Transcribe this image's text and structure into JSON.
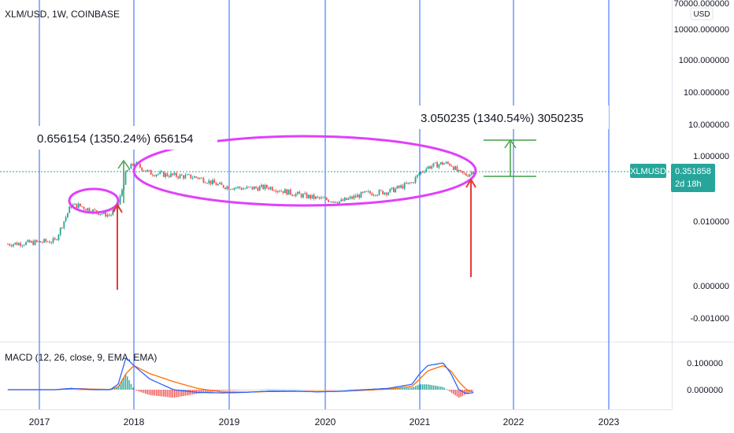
{
  "header": {
    "symbol_title": "XLM/USD, 1W, COINBASE"
  },
  "price_axis": {
    "currency_button": "USD",
    "tick_labels": [
      "70000.000000",
      "10000.000000",
      "1000.000000",
      "100.000000",
      "10.000000",
      "1.000000",
      "0.010000",
      "0.000000",
      "-0.001000"
    ],
    "scale": "log"
  },
  "last_price": {
    "symbol": "XLMUSD",
    "value": "0.351858",
    "countdown": "2d 18h",
    "color": "#26a69a"
  },
  "time_axis": {
    "tick_labels": [
      "2017",
      "2018",
      "2019",
      "2020",
      "2021",
      "2022",
      "2023"
    ]
  },
  "annotations": {
    "measure_left": "0.656154 (1350.24%) 656154",
    "measure_right": "3.050235 (1340.54%) 3050235"
  },
  "macd": {
    "title": "MACD (12, 26, close, 9, EMA, EMA)",
    "tick_labels": [
      "0.100000",
      "0.000000"
    ],
    "macd_color": "#2962ff",
    "signal_color": "#ff6d00",
    "hist_pos_color": "#26a69a",
    "hist_neg_color": "#ef5350"
  },
  "colors": {
    "up": "#26a69a",
    "down": "#ef5350",
    "year_lines": "#2962ff",
    "ellipse": "#e040fb",
    "arrow_red": "#e53935",
    "arrow_green": "#43a047",
    "price_line": "#26a69a"
  },
  "chart_data": {
    "type": "candlestick",
    "title": "XLM/USD, 1W, COINBASE",
    "y_scale": "log",
    "x": [
      "2016-09",
      "2016-12",
      "2017-03",
      "2017-05",
      "2017-06",
      "2017-08",
      "2017-10",
      "2017-11",
      "2017-12",
      "2018-01",
      "2018-03",
      "2018-06",
      "2018-09",
      "2018-12",
      "2019-03",
      "2019-06",
      "2019-09",
      "2019-12",
      "2020-03",
      "2020-06",
      "2020-09",
      "2020-12",
      "2021-01",
      "2021-02",
      "2021-04",
      "2021-05",
      "2021-06",
      "2021-07",
      "2021-08"
    ],
    "series": [
      {
        "name": "XLMUSD",
        "values": [
          0.002,
          0.0022,
          0.0025,
          0.03,
          0.03,
          0.02,
          0.015,
          0.03,
          0.3,
          0.6,
          0.3,
          0.25,
          0.22,
          0.12,
          0.1,
          0.11,
          0.07,
          0.05,
          0.04,
          0.07,
          0.08,
          0.15,
          0.3,
          0.45,
          0.6,
          0.55,
          0.3,
          0.26,
          0.35
        ]
      }
    ],
    "macd_series": [
      {
        "name": "MACD",
        "values": [
          0.0,
          0.0,
          0.0,
          0.005,
          0.003,
          0.0,
          0.0,
          0.02,
          0.12,
          0.09,
          0.04,
          0.0,
          -0.01,
          -0.012,
          -0.01,
          -0.005,
          -0.005,
          -0.008,
          -0.006,
          0.0,
          0.005,
          0.02,
          0.06,
          0.09,
          0.1,
          0.06,
          0.0,
          -0.015,
          -0.01
        ]
      },
      {
        "name": "Signal",
        "values": [
          0.0,
          0.0,
          0.0,
          0.003,
          0.004,
          0.002,
          0.001,
          0.01,
          0.06,
          0.09,
          0.06,
          0.03,
          0.005,
          -0.008,
          -0.009,
          -0.007,
          -0.006,
          -0.007,
          -0.006,
          -0.002,
          0.002,
          0.012,
          0.04,
          0.07,
          0.09,
          0.07,
          0.03,
          0.0,
          -0.01
        ]
      }
    ],
    "price_ticks": [
      "70000.000000",
      "10000.000000",
      "1000.000000",
      "100.000000",
      "10.000000",
      "1.000000",
      "0.010000",
      "0.000000",
      "-0.001000"
    ],
    "macd_ticks": [
      "0.100000",
      "0.000000"
    ],
    "x_ticks": [
      "2017",
      "2018",
      "2019",
      "2020",
      "2021",
      "2022",
      "2023"
    ],
    "last_value": 0.351858,
    "grid": false,
    "legend": "top-left"
  }
}
